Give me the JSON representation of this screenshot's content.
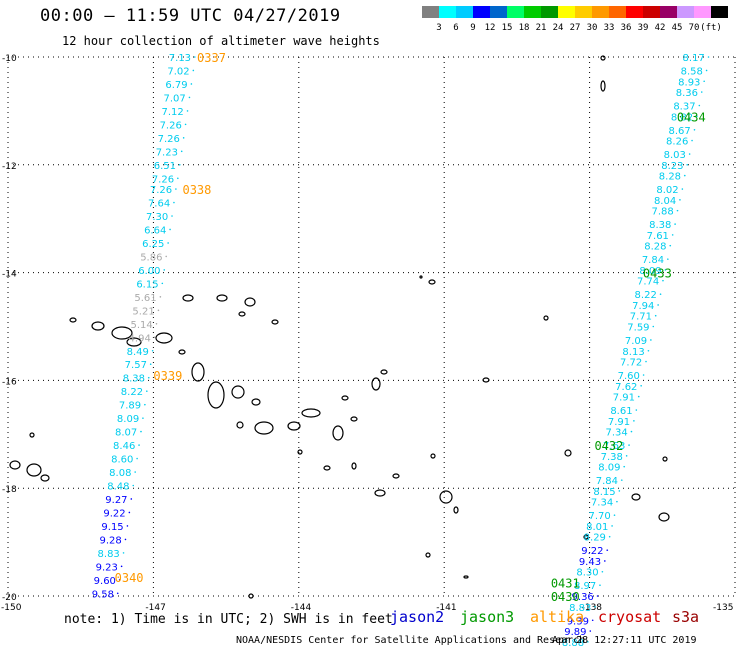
{
  "header": {
    "title": "00:00 – 11:59 UTC 04/27/2019",
    "subtitle": "12 hour collection of altimeter wave heights"
  },
  "colorbar": {
    "unit": "(ft)",
    "colors": [
      "#808080",
      "#00ffff",
      "#00ccff",
      "#0000ff",
      "#0066cc",
      "#00ff66",
      "#00cc00",
      "#009900",
      "#ffff00",
      "#ffcc00",
      "#ff9900",
      "#ff6600",
      "#ff0000",
      "#cc0000",
      "#990066",
      "#cc99ff",
      "#ff99ff",
      "#000000"
    ],
    "labels": [
      "3",
      "6",
      "9",
      "12",
      "15",
      "18",
      "21",
      "24",
      "27",
      "30",
      "33",
      "36",
      "39",
      "42",
      "45",
      "70"
    ]
  },
  "axes": {
    "lat_labels": [
      "-10",
      "-12",
      "-14",
      "-16",
      "-18",
      "-20"
    ],
    "lon_labels": [
      "-150",
      "-147",
      "-144",
      "-141",
      "-138",
      "-135"
    ]
  },
  "tracks": [
    {
      "satellite": "altika",
      "labels": [
        {
          "text": "0337",
          "lon": -146.1,
          "lat": -10.0
        },
        {
          "text": "0338",
          "lon": -146.4,
          "lat": -12.45
        },
        {
          "text": "0339",
          "lon": -147.0,
          "lat": -15.9
        },
        {
          "text": "0340",
          "lon": -147.8,
          "lat": -19.65
        }
      ],
      "points": [
        {
          "lon": -146.6,
          "lat": -10.0,
          "v": "7.13"
        },
        {
          "lon": -146.63,
          "lat": -10.25,
          "v": "7.02"
        },
        {
          "lon": -146.67,
          "lat": -10.5,
          "v": "6.79"
        },
        {
          "lon": -146.71,
          "lat": -10.75,
          "v": "7.07"
        },
        {
          "lon": -146.75,
          "lat": -11.0,
          "v": "7.12"
        },
        {
          "lon": -146.79,
          "lat": -11.25,
          "v": "7.26"
        },
        {
          "lon": -146.83,
          "lat": -11.5,
          "v": "7.26"
        },
        {
          "lon": -146.87,
          "lat": -11.75,
          "v": "7.23"
        },
        {
          "lon": -146.91,
          "lat": -12.0,
          "v": "6.51"
        },
        {
          "lon": -146.95,
          "lat": -12.25,
          "v": "7.26"
        },
        {
          "lon": -146.99,
          "lat": -12.45,
          "v": "7.26"
        },
        {
          "lon": -147.03,
          "lat": -12.7,
          "v": "7.64"
        },
        {
          "lon": -147.07,
          "lat": -12.95,
          "v": "7.30"
        },
        {
          "lon": -147.11,
          "lat": -13.2,
          "v": "6.64"
        },
        {
          "lon": -147.15,
          "lat": -13.45,
          "v": "6.25"
        },
        {
          "lon": -147.19,
          "lat": -13.7,
          "v": "5.86"
        },
        {
          "lon": -147.23,
          "lat": -13.95,
          "v": "6.00"
        },
        {
          "lon": -147.27,
          "lat": -14.2,
          "v": "6.15"
        },
        {
          "lon": -147.31,
          "lat": -14.45,
          "v": "5.61"
        },
        {
          "lon": -147.35,
          "lat": -14.7,
          "v": "5.21"
        },
        {
          "lon": -147.39,
          "lat": -14.95,
          "v": "5.14"
        },
        {
          "lon": -147.43,
          "lat": -15.2,
          "v": "4.94"
        },
        {
          "lon": -147.47,
          "lat": -15.45,
          "v": "8.49"
        },
        {
          "lon": -147.51,
          "lat": -15.7,
          "v": "7.57"
        },
        {
          "lon": -147.55,
          "lat": -15.95,
          "v": "8.38"
        },
        {
          "lon": -147.59,
          "lat": -16.2,
          "v": "8.22"
        },
        {
          "lon": -147.63,
          "lat": -16.45,
          "v": "7.89"
        },
        {
          "lon": -147.67,
          "lat": -16.7,
          "v": "8.09"
        },
        {
          "lon": -147.71,
          "lat": -16.95,
          "v": "8.07"
        },
        {
          "lon": -147.75,
          "lat": -17.2,
          "v": "8.46"
        },
        {
          "lon": -147.79,
          "lat": -17.45,
          "v": "8.60"
        },
        {
          "lon": -147.83,
          "lat": -17.7,
          "v": "8.08"
        },
        {
          "lon": -147.87,
          "lat": -17.95,
          "v": "8.48"
        },
        {
          "lon": -147.91,
          "lat": -18.2,
          "v": "9.27"
        },
        {
          "lon": -147.95,
          "lat": -18.45,
          "v": "9.22"
        },
        {
          "lon": -147.99,
          "lat": -18.7,
          "v": "9.15"
        },
        {
          "lon": -148.03,
          "lat": -18.95,
          "v": "9.28"
        },
        {
          "lon": -148.07,
          "lat": -19.2,
          "v": "8.83"
        },
        {
          "lon": -148.11,
          "lat": -19.45,
          "v": "9.23"
        },
        {
          "lon": -148.15,
          "lat": -19.7,
          "v": "9.60"
        },
        {
          "lon": -148.19,
          "lat": -19.95,
          "v": "9.58"
        }
      ]
    },
    {
      "satellite": "jason3",
      "labels": [
        {
          "text": "0434",
          "lon": -136.2,
          "lat": -11.1
        },
        {
          "text": "0433",
          "lon": -136.9,
          "lat": -14.0
        },
        {
          "text": "0432",
          "lon": -137.9,
          "lat": -17.2
        },
        {
          "text": "0431",
          "lon": -138.8,
          "lat": -19.75
        },
        {
          "text": "0430",
          "lon": -138.8,
          "lat": -20.0
        }
      ],
      "points": [
        {
          "lon": -136.0,
          "lat": -10.0,
          "v": "8.17"
        },
        {
          "lon": -136.04,
          "lat": -10.25,
          "v": "8.58"
        },
        {
          "lon": -136.09,
          "lat": -10.45,
          "v": "8.93"
        },
        {
          "lon": -136.14,
          "lat": -10.65,
          "v": "8.36"
        },
        {
          "lon": -136.19,
          "lat": -10.9,
          "v": "8.37"
        },
        {
          "lon": -136.24,
          "lat": -11.1,
          "v": "8.82"
        },
        {
          "lon": -136.29,
          "lat": -11.35,
          "v": "8.67"
        },
        {
          "lon": -136.34,
          "lat": -11.55,
          "v": "8.26"
        },
        {
          "lon": -136.39,
          "lat": -11.8,
          "v": "8.03"
        },
        {
          "lon": -136.44,
          "lat": -12.0,
          "v": "8.23"
        },
        {
          "lon": -136.49,
          "lat": -12.2,
          "v": "8.28"
        },
        {
          "lon": -136.54,
          "lat": -12.45,
          "v": "8.02"
        },
        {
          "lon": -136.59,
          "lat": -12.65,
          "v": "8.04"
        },
        {
          "lon": -136.64,
          "lat": -12.85,
          "v": "7.88"
        },
        {
          "lon": -136.69,
          "lat": -13.1,
          "v": "8.38"
        },
        {
          "lon": -136.74,
          "lat": -13.3,
          "v": "7.61"
        },
        {
          "lon": -136.79,
          "lat": -13.5,
          "v": "8.28"
        },
        {
          "lon": -136.84,
          "lat": -13.75,
          "v": "7.84"
        },
        {
          "lon": -136.89,
          "lat": -13.95,
          "v": "8.09"
        },
        {
          "lon": -136.94,
          "lat": -14.15,
          "v": "7.74"
        },
        {
          "lon": -136.99,
          "lat": -14.4,
          "v": "8.22"
        },
        {
          "lon": -137.04,
          "lat": -14.6,
          "v": "7.94"
        },
        {
          "lon": -137.09,
          "lat": -14.8,
          "v": "7.71"
        },
        {
          "lon": -137.14,
          "lat": -15.0,
          "v": "7.59"
        },
        {
          "lon": -137.19,
          "lat": -15.25,
          "v": "7.09"
        },
        {
          "lon": -137.24,
          "lat": -15.45,
          "v": "8.13"
        },
        {
          "lon": -137.29,
          "lat": -15.65,
          "v": "7.72"
        },
        {
          "lon": -137.34,
          "lat": -15.9,
          "v": "7.60"
        },
        {
          "lon": -137.39,
          "lat": -16.1,
          "v": "7.62"
        },
        {
          "lon": -137.44,
          "lat": -16.3,
          "v": "7.91"
        },
        {
          "lon": -137.49,
          "lat": -16.55,
          "v": "8.61"
        },
        {
          "lon": -137.54,
          "lat": -16.75,
          "v": "7.91"
        },
        {
          "lon": -137.59,
          "lat": -16.95,
          "v": "7.34"
        },
        {
          "lon": -137.64,
          "lat": -17.2,
          "v": "7.63"
        },
        {
          "lon": -137.69,
          "lat": -17.4,
          "v": "7.38"
        },
        {
          "lon": -137.74,
          "lat": -17.6,
          "v": "8.09"
        },
        {
          "lon": -137.79,
          "lat": -17.85,
          "v": "7.84"
        },
        {
          "lon": -137.84,
          "lat": -18.05,
          "v": "8.15"
        },
        {
          "lon": -137.89,
          "lat": -18.25,
          "v": "7.34"
        },
        {
          "lon": -137.94,
          "lat": -18.5,
          "v": "7.70"
        },
        {
          "lon": -137.99,
          "lat": -18.7,
          "v": "8.01"
        },
        {
          "lon": -138.04,
          "lat": -18.9,
          "v": "8.29"
        },
        {
          "lon": -138.09,
          "lat": -19.15,
          "v": "9.22"
        },
        {
          "lon": -138.14,
          "lat": -19.35,
          "v": "9.43"
        },
        {
          "lon": -138.19,
          "lat": -19.55,
          "v": "8.30"
        },
        {
          "lon": -138.24,
          "lat": -19.8,
          "v": "8.97"
        },
        {
          "lon": -138.29,
          "lat": -20.0,
          "v": "9.36"
        },
        {
          "lon": -138.34,
          "lat": -20.2,
          "v": "8.83"
        },
        {
          "lon": -138.39,
          "lat": -20.45,
          "v": "9.39"
        },
        {
          "lon": -138.44,
          "lat": -20.65,
          "v": "9.89"
        },
        {
          "lon": -138.49,
          "lat": -20.85,
          "v": "8.88"
        }
      ]
    }
  ],
  "footer": {
    "note": "note:  1) Time is in UTC; 2) SWH is in feet",
    "legend": [
      {
        "name": "jason2",
        "color": "#0000cc"
      },
      {
        "name": "jason3",
        "color": "#009900"
      },
      {
        "name": "altika",
        "color": "#ff9900"
      },
      {
        "name": "cryosat",
        "color": "#cc0000"
      },
      {
        "name": "s3a",
        "color": "#990000"
      }
    ],
    "credit": "NOAA/NESDIS Center for Satellite Applications and Research",
    "timestamp": "Apr 28 12:27:11 UTC 2019"
  }
}
